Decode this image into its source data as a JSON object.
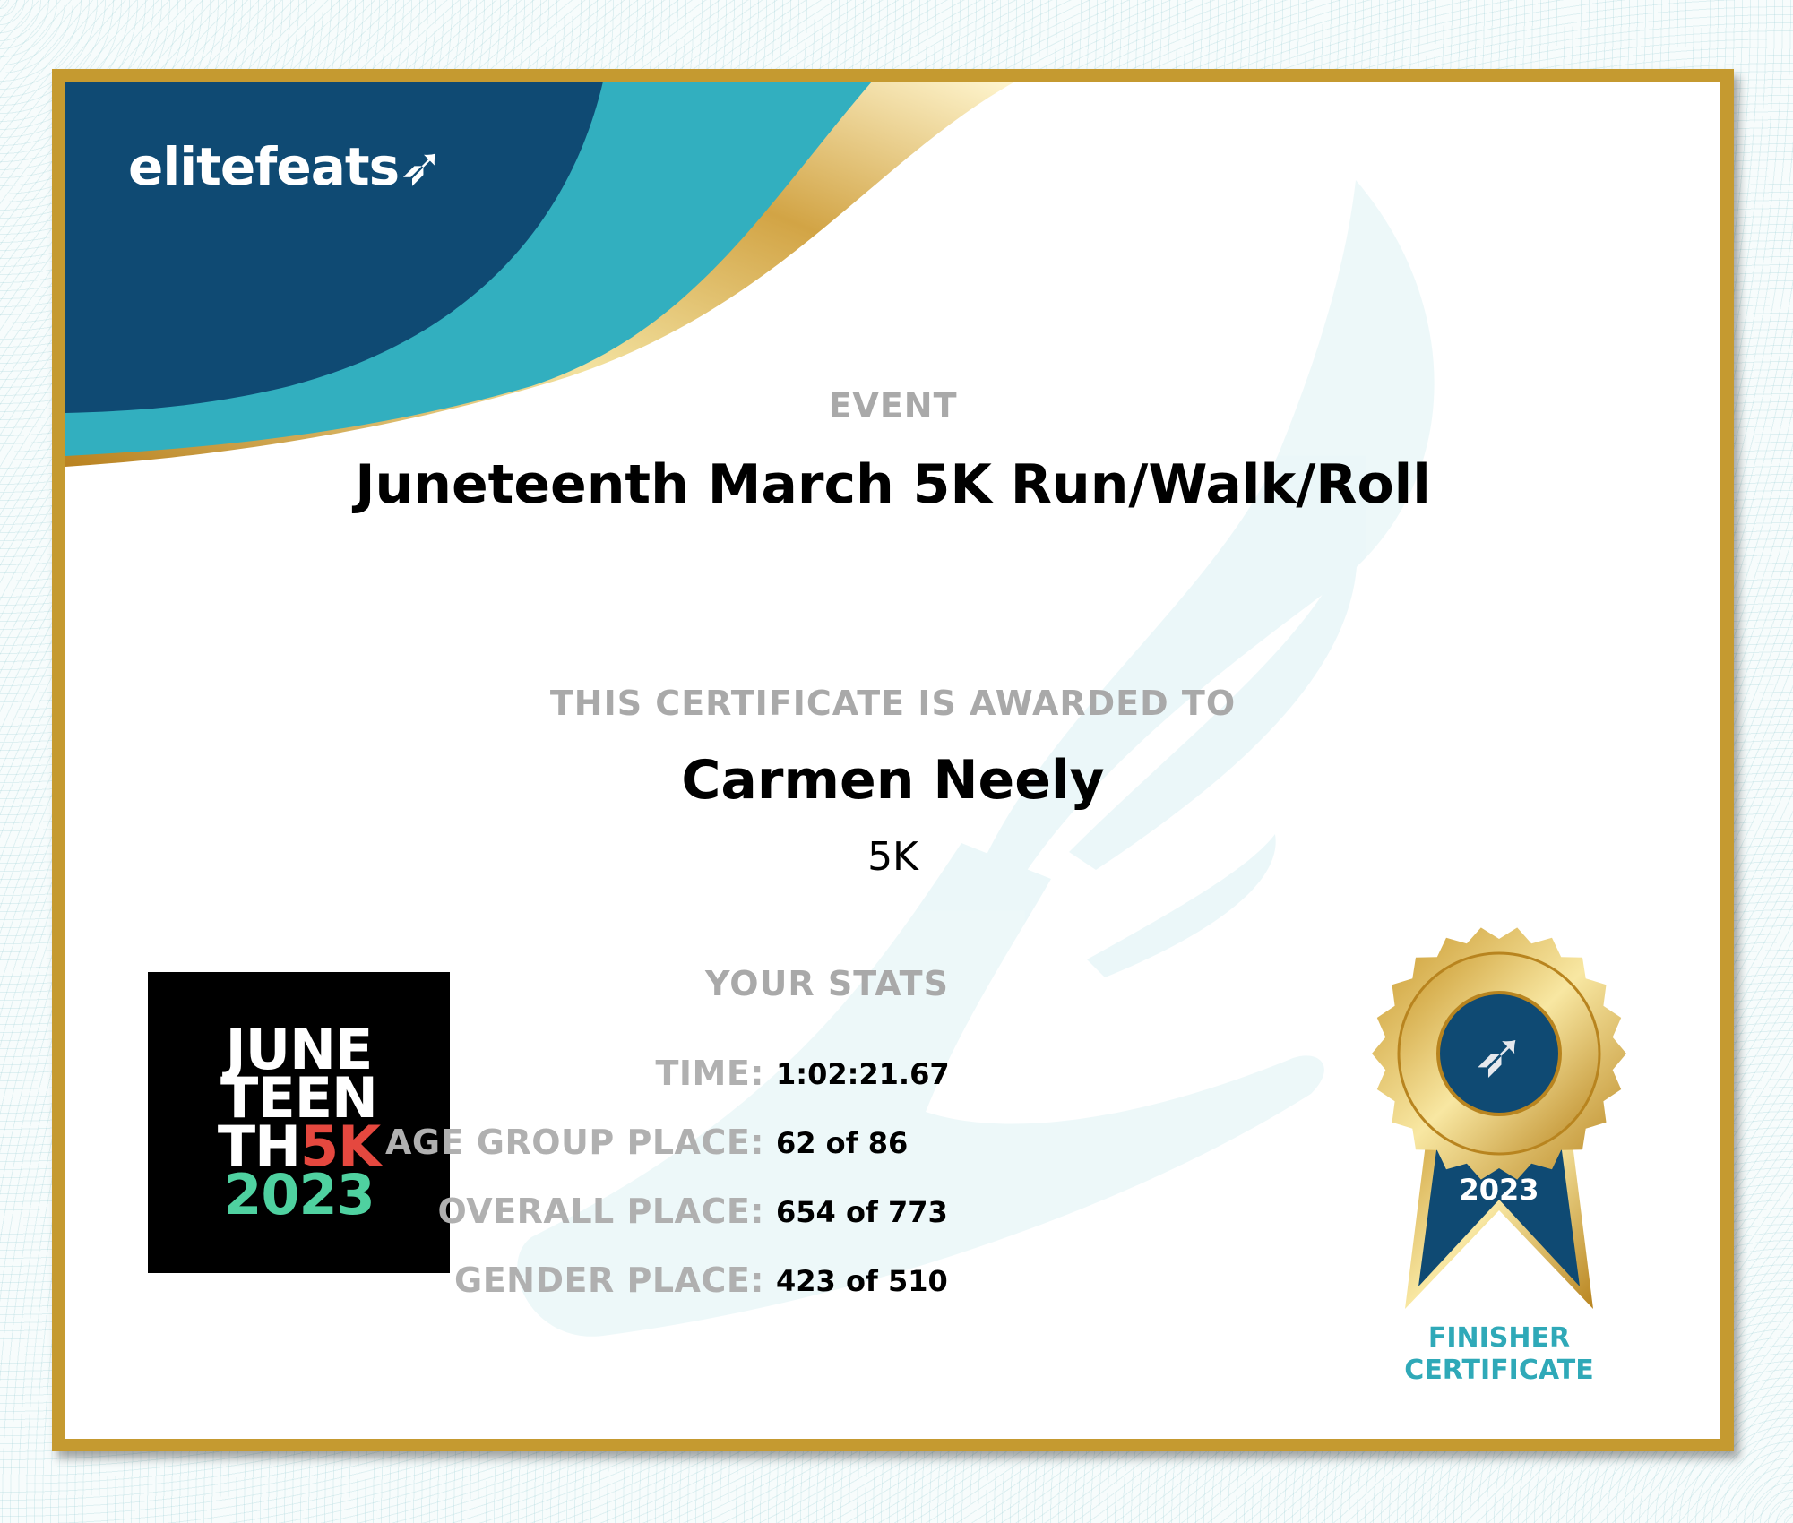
{
  "brand": {
    "name": "elitefeats",
    "colors": {
      "navy": "#0f4a73",
      "teal": "#32afbf",
      "gold": "#c59a30"
    }
  },
  "event": {
    "label": "EVENT",
    "title": "Juneteenth March 5K Run/Walk/Roll"
  },
  "award": {
    "label": "THIS CERTIFICATE IS AWARDED TO",
    "name": "Carmen Neely",
    "distance": "5K"
  },
  "stats": {
    "title": "YOUR STATS",
    "rows": [
      {
        "label": "TIME:",
        "value": "1:02:21.67"
      },
      {
        "label": "AGE GROUP PLACE:",
        "value": "62 of 86"
      },
      {
        "label": "OVERALL PLACE:",
        "value": "654 of 773"
      },
      {
        "label": "GENDER PLACE:",
        "value": "423 of 510"
      }
    ]
  },
  "event_logo": {
    "lines": [
      "JUNE",
      "TEEN",
      "TH",
      "5K",
      "2023"
    ],
    "colors": {
      "white": "#ffffff",
      "red": "#e5483f",
      "green": "#4fd1a0"
    }
  },
  "medal": {
    "year": "2023",
    "icon": "winged-foot-icon",
    "caption_line1": "FINISHER",
    "caption_line2": "CERTIFICATE"
  }
}
